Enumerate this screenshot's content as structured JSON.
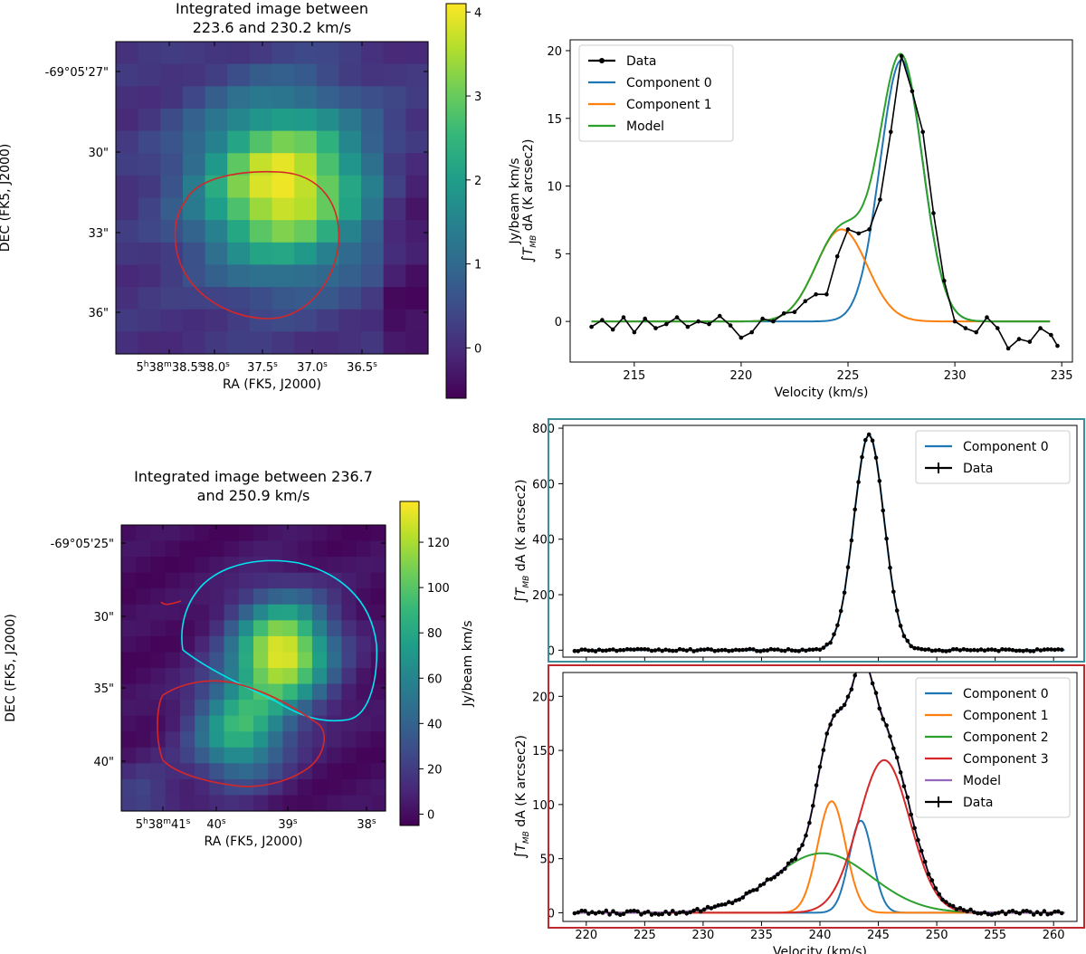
{
  "chart_data": [
    {
      "type": "heatmap",
      "title_lines": [
        "Integrated image between",
        "223.6 and 230.2 km/s"
      ],
      "xlabel": "RA (FK5, J2000)",
      "ylabel": "DEC (FK5, J2000)",
      "x_ticks": [
        {
          "label": "5h38m38.5s",
          "main": "5",
          "h": "h",
          "m_val": "38",
          "m": "m",
          "s_val": "38.5",
          "s": "s"
        },
        {
          "label": "38.0s",
          "main": "38.0",
          "sup": "s"
        },
        {
          "label": "37.5s",
          "main": "37.5",
          "sup": "s"
        },
        {
          "label": "37.0s",
          "main": "37.0",
          "sup": "s"
        },
        {
          "label": "36.5s",
          "main": "36.5",
          "sup": "s"
        }
      ],
      "y_ticks": [
        "-69°05'27\"",
        "30\"",
        "33\"",
        "36\""
      ],
      "colorbar": {
        "label": "Jy/beam km/s",
        "ticks": [
          "0",
          "1",
          "2",
          "3",
          "4"
        ],
        "range": [
          -0.6,
          4.1
        ]
      },
      "grid_shape": [
        14,
        14
      ],
      "peak": {
        "row": 6,
        "col": 7,
        "value": 4.05
      },
      "contour_color": "#d62728"
    },
    {
      "type": "line",
      "xlabel": "Velocity (km/s)",
      "ylabel": "∫T_MB dA (K arcsec2)",
      "xlim": [
        212,
        235.5
      ],
      "ylim": [
        -3,
        20.8
      ],
      "x_ticks": [
        215,
        220,
        225,
        230,
        235
      ],
      "y_ticks": [
        0,
        5,
        10,
        15,
        20
      ],
      "series": [
        {
          "name": "Data",
          "color": "#000000",
          "marker": "dot",
          "x": [
            213.0,
            213.5,
            214.0,
            214.5,
            215.0,
            215.5,
            216.0,
            216.5,
            217.0,
            217.5,
            218.0,
            218.5,
            219.0,
            219.5,
            220.0,
            220.5,
            221.0,
            221.5,
            222.0,
            222.5,
            223.0,
            223.5,
            224.0,
            224.5,
            225.0,
            225.5,
            226.0,
            226.5,
            227.0,
            227.5,
            228.0,
            228.5,
            229.0,
            229.5,
            230.0,
            230.5,
            231.0,
            231.5,
            232.0,
            232.5,
            233.0,
            233.5,
            234.0,
            234.5,
            234.8
          ],
          "values": [
            -0.4,
            0.1,
            -0.6,
            0.3,
            -0.8,
            0.2,
            -0.5,
            -0.2,
            0.3,
            -0.4,
            0.0,
            -0.2,
            0.4,
            -0.3,
            -1.2,
            -0.8,
            0.2,
            0.0,
            0.6,
            0.7,
            1.5,
            2.0,
            2.0,
            4.8,
            6.8,
            6.5,
            6.8,
            9.0,
            14.0,
            19.6,
            17.0,
            14.0,
            8.0,
            3.0,
            0.0,
            -0.5,
            -0.8,
            0.3,
            -0.5,
            -2.0,
            -1.3,
            -1.5,
            -0.5,
            -1.0,
            -1.8
          ]
        },
        {
          "name": "Component 0",
          "color": "#1f77b4",
          "gaussian": {
            "amp": 19.3,
            "mu": 227.5,
            "sigma": 1.0
          }
        },
        {
          "name": "Component 1",
          "color": "#ff7f0e",
          "gaussian": {
            "amp": 6.8,
            "mu": 224.7,
            "sigma": 1.2
          }
        },
        {
          "name": "Model",
          "color": "#2ca02c",
          "sum_of": [
            "Component 0",
            "Component 1"
          ]
        }
      ],
      "legend_order": [
        "Data",
        "Component 0",
        "Component 1",
        "Model"
      ],
      "legend_position": "upper-left"
    },
    {
      "type": "heatmap",
      "title_lines": [
        "Integrated image between 236.7",
        "and 250.9 km/s"
      ],
      "xlabel": "RA (FK5, J2000)",
      "ylabel": "DEC (FK5, J2000)",
      "x_ticks": [
        {
          "label": "5h38m41s",
          "main": "5",
          "h": "h",
          "m_val": "38",
          "m": "m",
          "s_val": "41",
          "s": "s"
        },
        {
          "label": "40s",
          "main": "40",
          "sup": "s"
        },
        {
          "label": "39s",
          "main": "39",
          "sup": "s"
        },
        {
          "label": "38s",
          "main": "38",
          "sup": "s"
        }
      ],
      "y_ticks": [
        "-69°05'25\"",
        "30\"",
        "35\"",
        "40\""
      ],
      "colorbar": {
        "label": "Jy/beam km/s",
        "ticks": [
          "0",
          "20",
          "40",
          "60",
          "80",
          "100",
          "120"
        ],
        "range": [
          -5,
          138
        ]
      },
      "grid_shape": [
        18,
        18
      ],
      "contour_colors": [
        "#00e5ee",
        "#d62728"
      ]
    },
    {
      "type": "line",
      "xlabel": "",
      "ylabel": "∫T_MB dA (K arcsec2)",
      "xlim": [
        218,
        262
      ],
      "ylim": [
        -25,
        810
      ],
      "y_ticks": [
        0,
        200,
        400,
        600,
        800
      ],
      "frame_color": "#3a8f9b",
      "series": [
        {
          "name": "Component 0",
          "color": "#1f77b4",
          "gaussian": {
            "amp": 775,
            "mu": 244.2,
            "sigma": 1.3
          }
        },
        {
          "name": "Data",
          "color": "#000000",
          "marker": "dot",
          "noise": 4
        }
      ],
      "legend_order": [
        "Component 0",
        "Data"
      ],
      "legend_position": "upper-right"
    },
    {
      "type": "line",
      "xlabel": "Velocity (km/s)",
      "ylabel": "∫T_MB dA (K arcsec2)",
      "xlim": [
        218,
        262
      ],
      "ylim": [
        -8,
        222
      ],
      "x_ticks": [
        220,
        225,
        230,
        235,
        240,
        245,
        250,
        255,
        260
      ],
      "y_ticks": [
        0,
        50,
        100,
        150,
        200
      ],
      "frame_color": "#c0282d",
      "series": [
        {
          "name": "Component 0",
          "color": "#1f77b4",
          "gaussian": {
            "amp": 85,
            "mu": 243.5,
            "sigma": 1.0
          }
        },
        {
          "name": "Component 1",
          "color": "#ff7f0e",
          "gaussian": {
            "amp": 103,
            "mu": 241.0,
            "sigma": 1.2
          }
        },
        {
          "name": "Component 2",
          "color": "#2ca02c",
          "gaussian": {
            "amp": 55,
            "mu": 240.2,
            "sigma": 4.2
          }
        },
        {
          "name": "Component 3",
          "color": "#d62728",
          "gaussian": {
            "amp": 141,
            "mu": 245.5,
            "sigma": 2.2
          }
        },
        {
          "name": "Model",
          "color": "#9467bd",
          "sum_of": [
            "Component 0",
            "Component 1",
            "Component 2",
            "Component 3"
          ]
        },
        {
          "name": "Data",
          "color": "#000000",
          "marker": "dot",
          "noise": 2
        }
      ],
      "legend_order": [
        "Component 0",
        "Component 1",
        "Component 2",
        "Component 3",
        "Model",
        "Data"
      ],
      "legend_position": "upper-right"
    }
  ]
}
